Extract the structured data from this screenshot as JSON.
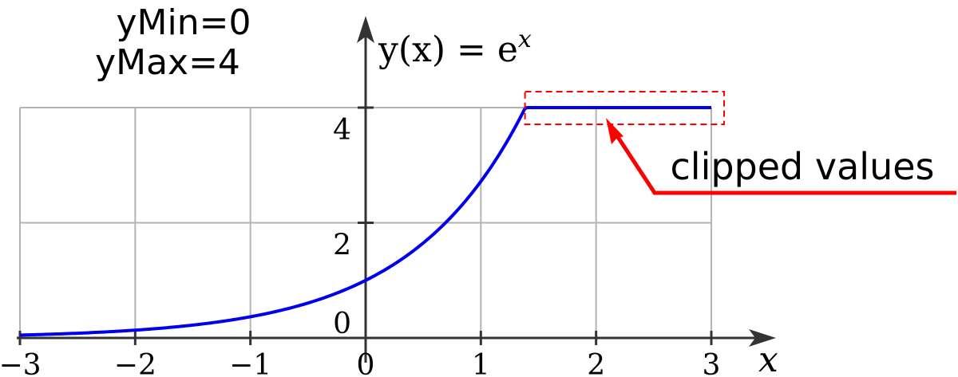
{
  "params": {
    "ymin_text": "yMin=0",
    "ymax_text": "yMax=4"
  },
  "chart_data": {
    "type": "line",
    "title": "",
    "function_label": "y(x) = e^x",
    "function_parts": {
      "lhs": "y(x) = e",
      "exp": "x"
    },
    "xlabel": "x",
    "ylabel": "",
    "xlim": [
      -3,
      3
    ],
    "ylim": [
      0,
      4
    ],
    "xticks": [
      -3,
      -2,
      -1,
      0,
      1,
      2,
      3
    ],
    "xtick_labels": [
      "−3",
      "−2",
      "−1",
      "0",
      "1",
      "2",
      "3"
    ],
    "yticks": [
      0,
      2,
      4
    ],
    "ytick_labels": [
      "0",
      "2",
      "4"
    ],
    "grid": true,
    "series": [
      {
        "function": "exp(x) clipped to [0, 4]",
        "color": "#0000ee",
        "x_start": -3,
        "x_end": 3,
        "clip_max": 4
      }
    ],
    "annotations": [
      {
        "text": "clipped values",
        "color": "#ff0000",
        "target_x_range": [
          1.39,
          3
        ],
        "target_y": 4
      }
    ]
  },
  "colors": {
    "curve": "#0000ee",
    "annotation": "#ff0000",
    "grid": "#b3b3b3",
    "axis": "#333333"
  }
}
